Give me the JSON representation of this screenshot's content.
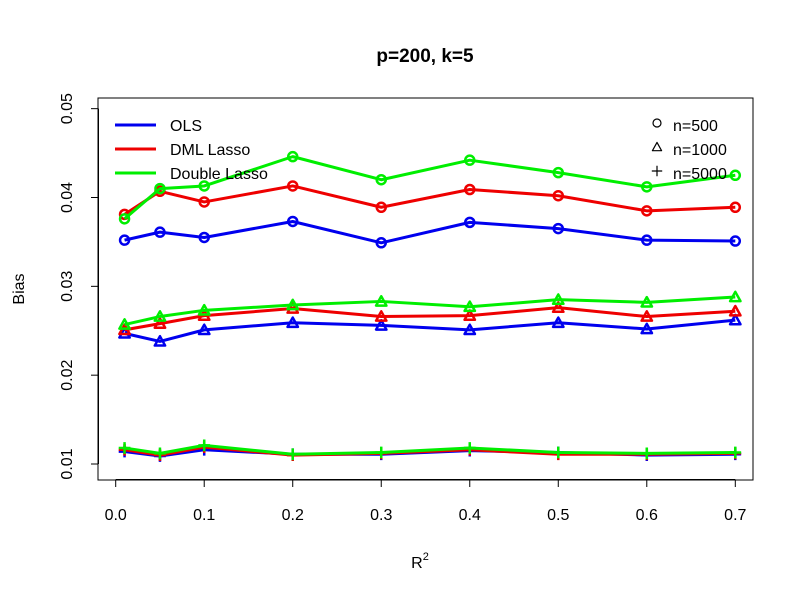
{
  "chart_data": {
    "type": "line",
    "title": "p=200, k=5",
    "xlabel": "R",
    "xlabel_superscript": "2",
    "ylabel": "Bias",
    "xlim": [
      -0.02,
      0.72
    ],
    "ylim": [
      0.0082,
      0.0512
    ],
    "x": [
      0.01,
      0.05,
      0.1,
      0.2,
      0.3,
      0.4,
      0.5,
      0.6,
      0.7
    ],
    "xticks": [
      "0.0",
      "0.1",
      "0.2",
      "0.3",
      "0.4",
      "0.5",
      "0.6",
      "0.7"
    ],
    "yticks": [
      "0.01",
      "0.02",
      "0.03",
      "0.04",
      "0.05"
    ],
    "methods": [
      {
        "name": "OLS",
        "color": "#0000ee"
      },
      {
        "name": "DML Lasso",
        "color": "#ee0000"
      },
      {
        "name": "Double Lasso",
        "color": "#00ee00"
      }
    ],
    "sample_sizes": [
      {
        "label": "n=500",
        "marker": "circle"
      },
      {
        "label": "n=1000",
        "marker": "triangle"
      },
      {
        "label": "n=5000",
        "marker": "plus"
      }
    ],
    "series": [
      {
        "method": "OLS",
        "n": "n=500",
        "values": [
          0.0352,
          0.0361,
          0.0355,
          0.0373,
          0.0349,
          0.0372,
          0.0365,
          0.0352,
          0.0351
        ]
      },
      {
        "method": "DML Lasso",
        "n": "n=500",
        "values": [
          0.0381,
          0.0407,
          0.0395,
          0.0413,
          0.0389,
          0.0409,
          0.0402,
          0.0385,
          0.0389
        ]
      },
      {
        "method": "Double Lasso",
        "n": "n=500",
        "values": [
          0.0376,
          0.041,
          0.0413,
          0.0446,
          0.042,
          0.0442,
          0.0428,
          0.0412,
          0.0425
        ]
      },
      {
        "method": "OLS",
        "n": "n=1000",
        "values": [
          0.0247,
          0.0238,
          0.0251,
          0.0259,
          0.0256,
          0.0251,
          0.0259,
          0.0252,
          0.0262
        ]
      },
      {
        "method": "DML Lasso",
        "n": "n=1000",
        "values": [
          0.0251,
          0.0258,
          0.0267,
          0.0275,
          0.0266,
          0.0267,
          0.0276,
          0.0266,
          0.0272
        ]
      },
      {
        "method": "Double Lasso",
        "n": "n=1000",
        "values": [
          0.0257,
          0.0266,
          0.0273,
          0.0279,
          0.0283,
          0.0277,
          0.0285,
          0.0282,
          0.0288
        ]
      },
      {
        "method": "OLS",
        "n": "n=5000",
        "values": [
          0.0114,
          0.0109,
          0.0116,
          0.0111,
          0.0111,
          0.0115,
          0.0113,
          0.011,
          0.0111
        ]
      },
      {
        "method": "DML Lasso",
        "n": "n=5000",
        "values": [
          0.0116,
          0.011,
          0.0119,
          0.011,
          0.0112,
          0.0116,
          0.0111,
          0.0111,
          0.0112
        ]
      },
      {
        "method": "Double Lasso",
        "n": "n=5000",
        "values": [
          0.0118,
          0.0112,
          0.0121,
          0.0111,
          0.0113,
          0.0118,
          0.0113,
          0.0112,
          0.0113
        ]
      }
    ],
    "legend_methods_position": "top-left",
    "legend_sizes_position": "top-right",
    "grid": false
  }
}
